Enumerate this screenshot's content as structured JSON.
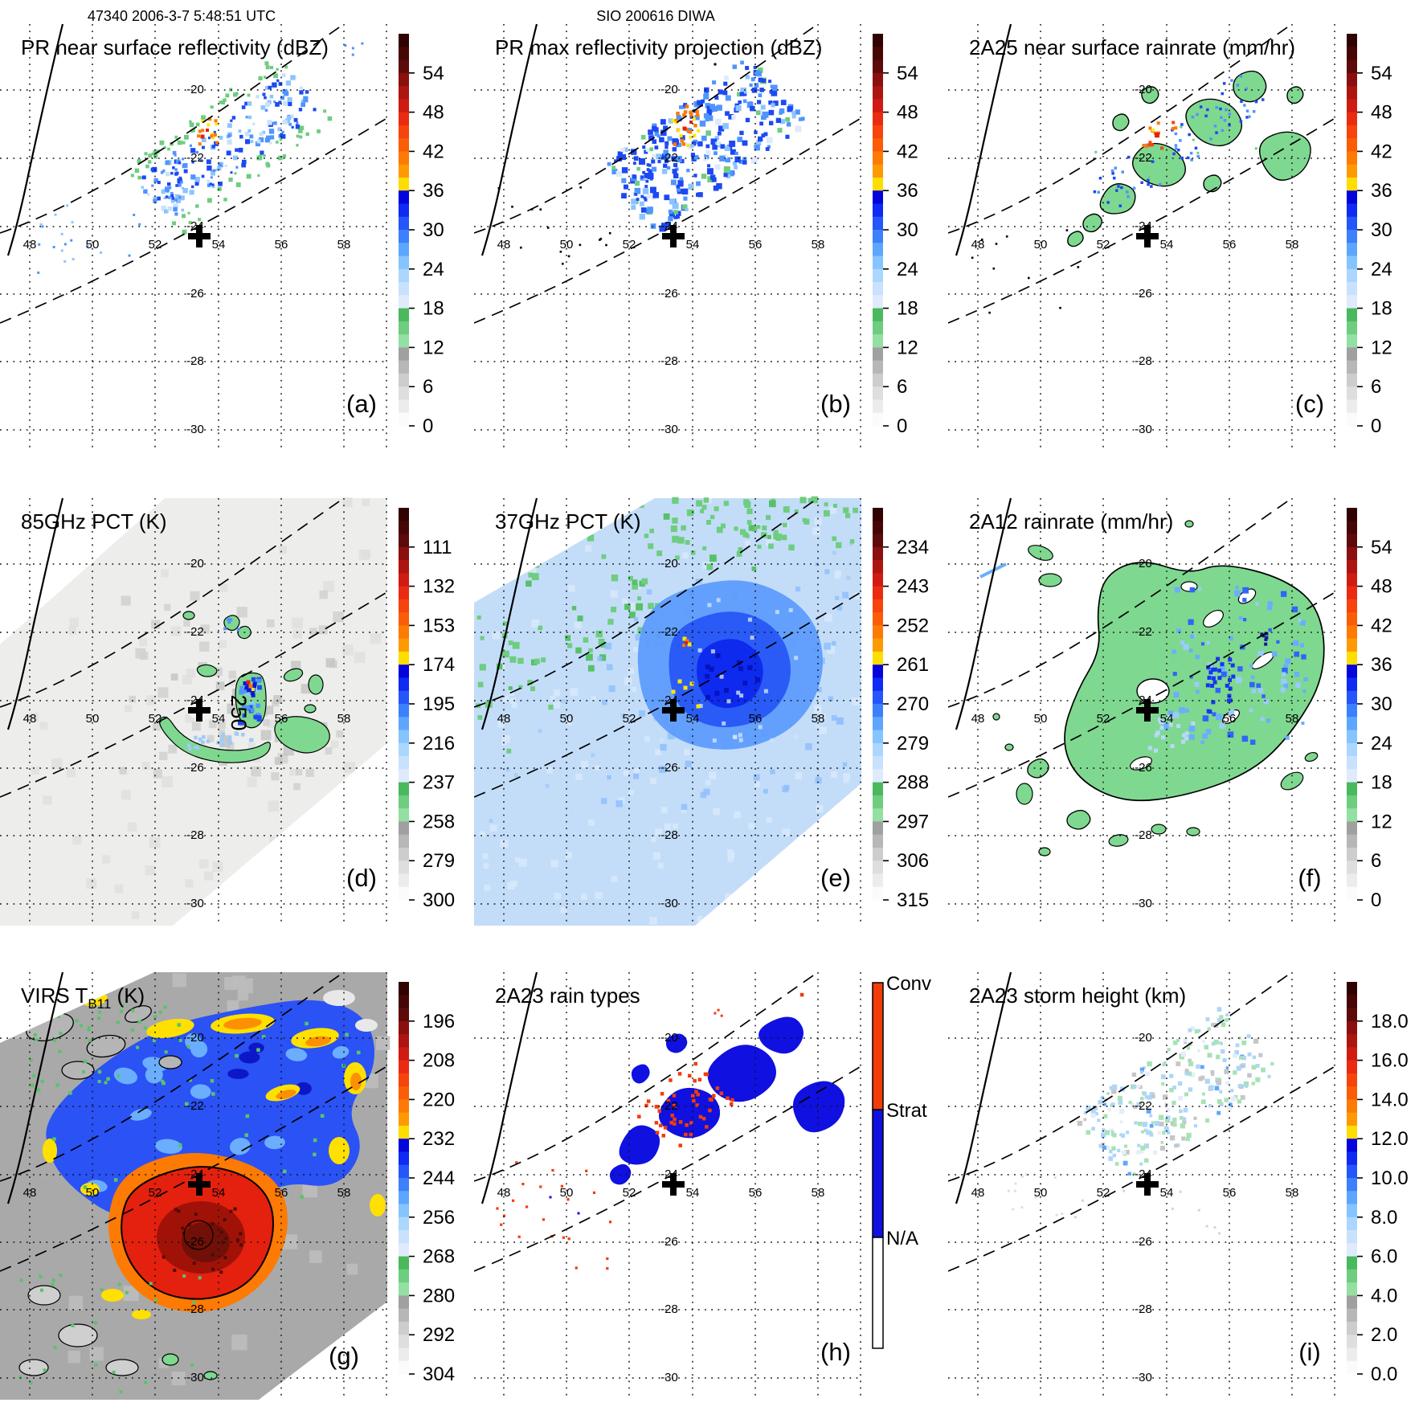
{
  "header": {
    "left_title": "47340 2006-3-7 5:48:51 UTC",
    "center_title": "SIO 200616 DIWA"
  },
  "axes": {
    "lon_ticks": [
      "48",
      "50",
      "52",
      "54",
      "56",
      "58"
    ],
    "lat_ticks": [
      "-20",
      "-22",
      "-24",
      "-26",
      "-28",
      "-30"
    ]
  },
  "storm_center": {
    "lon": 53.3,
    "lat": -24.3,
    "marker": "plus-cross"
  },
  "panels": [
    {
      "id": "a",
      "letter": "(a)",
      "title": "PR near surface reflectivity (dBZ)",
      "colorbar": {
        "kind": "gradient",
        "tick_labels": [
          "54",
          "48",
          "42",
          "36",
          "30",
          "24",
          "18",
          "12",
          "6",
          "0"
        ]
      }
    },
    {
      "id": "b",
      "letter": "(b)",
      "title": "PR max reflectivity projection (dBZ)",
      "colorbar": {
        "kind": "gradient",
        "tick_labels": [
          "54",
          "48",
          "42",
          "36",
          "30",
          "24",
          "18",
          "12",
          "6",
          "0"
        ]
      }
    },
    {
      "id": "c",
      "letter": "(c)",
      "title": "2A25 near surface rainrate (mm/hr)",
      "colorbar": {
        "kind": "gradient",
        "tick_labels": [
          "54",
          "48",
          "42",
          "36",
          "30",
          "24",
          "18",
          "12",
          "6",
          "0"
        ]
      }
    },
    {
      "id": "d",
      "letter": "(d)",
      "title": "85GHz PCT (K)",
      "annotation": "250",
      "colorbar": {
        "kind": "gradient",
        "tick_labels": [
          "111",
          "132",
          "153",
          "174",
          "195",
          "216",
          "237",
          "258",
          "279",
          "300"
        ]
      }
    },
    {
      "id": "e",
      "letter": "(e)",
      "title": "37GHz PCT (K)",
      "colorbar": {
        "kind": "gradient",
        "tick_labels": [
          "234",
          "243",
          "252",
          "261",
          "270",
          "279",
          "288",
          "297",
          "306",
          "315"
        ]
      }
    },
    {
      "id": "f",
      "letter": "(f)",
      "title": "2A12 rainrate (mm/hr)",
      "colorbar": {
        "kind": "gradient",
        "tick_labels": [
          "54",
          "48",
          "42",
          "36",
          "30",
          "24",
          "18",
          "12",
          "6",
          "0"
        ]
      }
    },
    {
      "id": "g",
      "letter": "(g)",
      "title": "VIRS T_B11 (K)",
      "title_pre": "VIRS T",
      "title_sub": "B11",
      "title_post": " (K)",
      "colorbar": {
        "kind": "gradient",
        "tick_labels": [
          "196",
          "208",
          "220",
          "232",
          "244",
          "256",
          "268",
          "280",
          "292",
          "304"
        ]
      }
    },
    {
      "id": "h",
      "letter": "(h)",
      "title": "2A23 rain types",
      "colorbar": {
        "kind": "categories",
        "labels": [
          "Conv",
          "Strat",
          "N/A"
        ],
        "colors": [
          "#f23c0a",
          "#1010e0",
          "#ffffff"
        ]
      }
    },
    {
      "id": "i",
      "letter": "(i)",
      "title": "2A23 storm height (km)",
      "colorbar": {
        "kind": "gradient",
        "tick_labels": [
          "18.0",
          "16.0",
          "14.0",
          "12.0",
          "10.0",
          "8.0",
          "6.0",
          "4.0",
          "2.0",
          "0.0"
        ]
      }
    }
  ],
  "colors": {
    "background": "#ffffff",
    "grid": "#111111",
    "coast": "#000000",
    "swath_line": "#000000",
    "rain_green": "#7fd890",
    "colormap": [
      "#310202",
      "#470606",
      "#5c0a0a",
      "#8a0f0e",
      "#ad1510",
      "#cf1b12",
      "#ea2b11",
      "#f6440c",
      "#fb5d07",
      "#fd7a04",
      "#fe9a01",
      "#fedd00",
      "#0404dd",
      "#0f2af2",
      "#2456fa",
      "#3c80fc",
      "#5ea6fd",
      "#85c4fe",
      "#abd7fe",
      "#c8e2fd",
      "#dfeafc",
      "#4ab95c",
      "#6ecd7f",
      "#93e0a2",
      "#a0a0a0",
      "#b7b7b7",
      "#cdcdcd",
      "#dedede",
      "#ececec",
      "#fbfbfb"
    ],
    "rain_types": {
      "Conv": "#f23c0a",
      "Strat": "#1010e0",
      "N/A": "#ffffff"
    }
  },
  "chart_data": {
    "type": "heatmap",
    "layout": "3x3 satellite map panels, each with right-hand vertical colorbar",
    "shared_axes": {
      "lon_tick_values": [
        48,
        50,
        52,
        54,
        56,
        58
      ],
      "lat_tick_values": [
        -20,
        -22,
        -24,
        -26,
        -28,
        -30
      ],
      "grid": "dotted",
      "overlays": [
        "Madagascar coastline (solid)",
        "PR swath edges (dashed diagonals)",
        "storm center plus marker at ~53.3E, -24.3S"
      ]
    },
    "panels": [
      {
        "panel": "a",
        "title": "PR near surface reflectivity (dBZ)",
        "colorbar_ticks": [
          54,
          48,
          42,
          36,
          30,
          24,
          18,
          12,
          6,
          0
        ],
        "units": "dBZ"
      },
      {
        "panel": "b",
        "title": "PR max reflectivity projection (dBZ)",
        "colorbar_ticks": [
          54,
          48,
          42,
          36,
          30,
          24,
          18,
          12,
          6,
          0
        ],
        "units": "dBZ"
      },
      {
        "panel": "c",
        "title": "2A25 near surface rainrate (mm/hr)",
        "colorbar_ticks": [
          54,
          48,
          42,
          36,
          30,
          24,
          18,
          12,
          6,
          0
        ],
        "units": "mm/hr"
      },
      {
        "panel": "d",
        "title": "85GHz PCT (K)",
        "colorbar_ticks": [
          111,
          132,
          153,
          174,
          195,
          216,
          237,
          258,
          279,
          300
        ],
        "units": "K",
        "annotations": [
          "250 contour label near storm center"
        ]
      },
      {
        "panel": "e",
        "title": "37GHz PCT (K)",
        "colorbar_ticks": [
          234,
          243,
          252,
          261,
          270,
          279,
          288,
          297,
          306,
          315
        ],
        "units": "K"
      },
      {
        "panel": "f",
        "title": "2A12 rainrate (mm/hr)",
        "colorbar_ticks": [
          54,
          48,
          42,
          36,
          30,
          24,
          18,
          12,
          6,
          0
        ],
        "units": "mm/hr"
      },
      {
        "panel": "g",
        "title": "VIRS T_B11 (K)",
        "colorbar_ticks": [
          196,
          208,
          220,
          232,
          244,
          256,
          268,
          280,
          292,
          304
        ],
        "units": "K"
      },
      {
        "panel": "h",
        "title": "2A23 rain types",
        "categories": [
          "Conv",
          "Strat",
          "N/A"
        ],
        "category_colors": [
          "#f23c0a",
          "#1010e0",
          "#ffffff"
        ]
      },
      {
        "panel": "i",
        "title": "2A23 storm height (km)",
        "colorbar_ticks": [
          18.0,
          16.0,
          14.0,
          12.0,
          10.0,
          8.0,
          6.0,
          4.0,
          2.0,
          0.0
        ],
        "units": "km"
      }
    ],
    "header_annotations": [
      "47340 2006-3-7 5:48:51 UTC",
      "SIO 200616 DIWA"
    ]
  }
}
